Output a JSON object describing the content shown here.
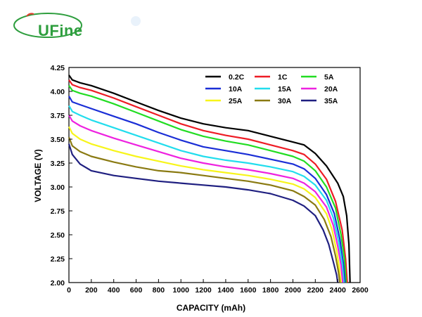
{
  "logo": {
    "text": "UFine",
    "color": "#2e9e3e",
    "accent": "#e23b2e"
  },
  "chart_data": {
    "type": "line",
    "xlabel": "CAPACITY (mAh)",
    "ylabel": "VOLTAGE (V)",
    "xlim": [
      0,
      2600
    ],
    "ylim": [
      2.0,
      4.25
    ],
    "xticks": [
      "0",
      "200",
      "400",
      "600",
      "800",
      "1000",
      "1200",
      "1400",
      "1600",
      "1800",
      "2000",
      "2200",
      "2400",
      "2600"
    ],
    "yticks": [
      "2.00",
      "2.25",
      "2.50",
      "2.75",
      "3.00",
      "3.25",
      "3.50",
      "3.75",
      "4.00",
      "4.25"
    ],
    "grid": false,
    "legend_position": "top-right",
    "series": [
      {
        "name": "0.2C",
        "color": "#000000",
        "points": [
          [
            0,
            4.17
          ],
          [
            30,
            4.12
          ],
          [
            100,
            4.09
          ],
          [
            200,
            4.06
          ],
          [
            400,
            3.98
          ],
          [
            600,
            3.89
          ],
          [
            800,
            3.8
          ],
          [
            1000,
            3.72
          ],
          [
            1200,
            3.66
          ],
          [
            1400,
            3.62
          ],
          [
            1600,
            3.59
          ],
          [
            1800,
            3.53
          ],
          [
            2000,
            3.47
          ],
          [
            2100,
            3.44
          ],
          [
            2200,
            3.35
          ],
          [
            2300,
            3.22
          ],
          [
            2400,
            3.04
          ],
          [
            2450,
            2.9
          ],
          [
            2480,
            2.7
          ],
          [
            2500,
            2.4
          ],
          [
            2510,
            2.0
          ]
        ]
      },
      {
        "name": "1C",
        "color": "#ee1c25",
        "points": [
          [
            0,
            4.12
          ],
          [
            30,
            4.07
          ],
          [
            100,
            4.04
          ],
          [
            200,
            4.01
          ],
          [
            400,
            3.93
          ],
          [
            600,
            3.84
          ],
          [
            800,
            3.75
          ],
          [
            1000,
            3.66
          ],
          [
            1200,
            3.59
          ],
          [
            1400,
            3.54
          ],
          [
            1600,
            3.5
          ],
          [
            1800,
            3.44
          ],
          [
            2000,
            3.38
          ],
          [
            2100,
            3.34
          ],
          [
            2200,
            3.24
          ],
          [
            2300,
            3.08
          ],
          [
            2380,
            2.85
          ],
          [
            2440,
            2.55
          ],
          [
            2470,
            2.25
          ],
          [
            2485,
            2.0
          ]
        ]
      },
      {
        "name": "5A",
        "color": "#22dd22",
        "points": [
          [
            0,
            4.06
          ],
          [
            30,
            4.01
          ],
          [
            100,
            3.98
          ],
          [
            200,
            3.95
          ],
          [
            400,
            3.87
          ],
          [
            600,
            3.78
          ],
          [
            800,
            3.69
          ],
          [
            1000,
            3.6
          ],
          [
            1200,
            3.53
          ],
          [
            1400,
            3.48
          ],
          [
            1600,
            3.44
          ],
          [
            1800,
            3.38
          ],
          [
            2000,
            3.32
          ],
          [
            2100,
            3.27
          ],
          [
            2200,
            3.17
          ],
          [
            2300,
            3.0
          ],
          [
            2380,
            2.78
          ],
          [
            2430,
            2.5
          ],
          [
            2460,
            2.25
          ],
          [
            2475,
            2.0
          ]
        ]
      },
      {
        "name": "10A",
        "color": "#1a2ed6",
        "points": [
          [
            0,
            3.95
          ],
          [
            30,
            3.89
          ],
          [
            100,
            3.86
          ],
          [
            200,
            3.82
          ],
          [
            400,
            3.74
          ],
          [
            600,
            3.66
          ],
          [
            800,
            3.57
          ],
          [
            1000,
            3.49
          ],
          [
            1200,
            3.42
          ],
          [
            1400,
            3.38
          ],
          [
            1600,
            3.34
          ],
          [
            1800,
            3.29
          ],
          [
            2000,
            3.24
          ],
          [
            2100,
            3.19
          ],
          [
            2200,
            3.09
          ],
          [
            2300,
            2.92
          ],
          [
            2370,
            2.72
          ],
          [
            2420,
            2.45
          ],
          [
            2450,
            2.2
          ],
          [
            2465,
            2.0
          ]
        ]
      },
      {
        "name": "15A",
        "color": "#22dded",
        "points": [
          [
            0,
            3.85
          ],
          [
            30,
            3.79
          ],
          [
            100,
            3.75
          ],
          [
            200,
            3.7
          ],
          [
            400,
            3.62
          ],
          [
            600,
            3.54
          ],
          [
            800,
            3.46
          ],
          [
            1000,
            3.38
          ],
          [
            1200,
            3.32
          ],
          [
            1400,
            3.28
          ],
          [
            1600,
            3.25
          ],
          [
            1800,
            3.21
          ],
          [
            2000,
            3.16
          ],
          [
            2100,
            3.11
          ],
          [
            2200,
            3.02
          ],
          [
            2300,
            2.86
          ],
          [
            2360,
            2.68
          ],
          [
            2410,
            2.42
          ],
          [
            2440,
            2.2
          ],
          [
            2455,
            2.0
          ]
        ]
      },
      {
        "name": "20A",
        "color": "#ee22e0",
        "points": [
          [
            0,
            3.75
          ],
          [
            30,
            3.69
          ],
          [
            100,
            3.64
          ],
          [
            200,
            3.59
          ],
          [
            400,
            3.51
          ],
          [
            600,
            3.44
          ],
          [
            800,
            3.37
          ],
          [
            1000,
            3.3
          ],
          [
            1200,
            3.25
          ],
          [
            1400,
            3.21
          ],
          [
            1600,
            3.18
          ],
          [
            1800,
            3.14
          ],
          [
            2000,
            3.09
          ],
          [
            2100,
            3.04
          ],
          [
            2200,
            2.95
          ],
          [
            2300,
            2.79
          ],
          [
            2360,
            2.6
          ],
          [
            2400,
            2.38
          ],
          [
            2430,
            2.18
          ],
          [
            2445,
            2.0
          ]
        ]
      },
      {
        "name": "25A",
        "color": "#f7f51a",
        "points": [
          [
            0,
            3.63
          ],
          [
            30,
            3.56
          ],
          [
            100,
            3.5
          ],
          [
            200,
            3.45
          ],
          [
            400,
            3.38
          ],
          [
            600,
            3.32
          ],
          [
            800,
            3.27
          ],
          [
            1000,
            3.22
          ],
          [
            1200,
            3.18
          ],
          [
            1400,
            3.15
          ],
          [
            1600,
            3.12
          ],
          [
            1800,
            3.08
          ],
          [
            2000,
            3.03
          ],
          [
            2100,
            2.98
          ],
          [
            2200,
            2.89
          ],
          [
            2300,
            2.72
          ],
          [
            2350,
            2.55
          ],
          [
            2390,
            2.33
          ],
          [
            2415,
            2.15
          ],
          [
            2430,
            2.0
          ]
        ]
      },
      {
        "name": "30A",
        "color": "#8a7a12",
        "points": [
          [
            0,
            3.52
          ],
          [
            30,
            3.43
          ],
          [
            100,
            3.37
          ],
          [
            200,
            3.32
          ],
          [
            400,
            3.26
          ],
          [
            600,
            3.21
          ],
          [
            800,
            3.17
          ],
          [
            1000,
            3.15
          ],
          [
            1200,
            3.12
          ],
          [
            1400,
            3.09
          ],
          [
            1600,
            3.06
          ],
          [
            1800,
            3.02
          ],
          [
            2000,
            2.96
          ],
          [
            2100,
            2.9
          ],
          [
            2200,
            2.81
          ],
          [
            2280,
            2.66
          ],
          [
            2340,
            2.48
          ],
          [
            2380,
            2.28
          ],
          [
            2405,
            2.12
          ],
          [
            2420,
            2.0
          ]
        ]
      },
      {
        "name": "35A",
        "color": "#1f1f80",
        "points": [
          [
            0,
            3.45
          ],
          [
            30,
            3.34
          ],
          [
            100,
            3.24
          ],
          [
            200,
            3.17
          ],
          [
            400,
            3.12
          ],
          [
            600,
            3.09
          ],
          [
            800,
            3.06
          ],
          [
            1000,
            3.04
          ],
          [
            1200,
            3.02
          ],
          [
            1400,
            3.0
          ],
          [
            1600,
            2.97
          ],
          [
            1800,
            2.93
          ],
          [
            2000,
            2.86
          ],
          [
            2100,
            2.8
          ],
          [
            2200,
            2.7
          ],
          [
            2270,
            2.55
          ],
          [
            2320,
            2.4
          ],
          [
            2360,
            2.22
          ],
          [
            2390,
            2.08
          ],
          [
            2400,
            2.0
          ]
        ]
      }
    ]
  }
}
